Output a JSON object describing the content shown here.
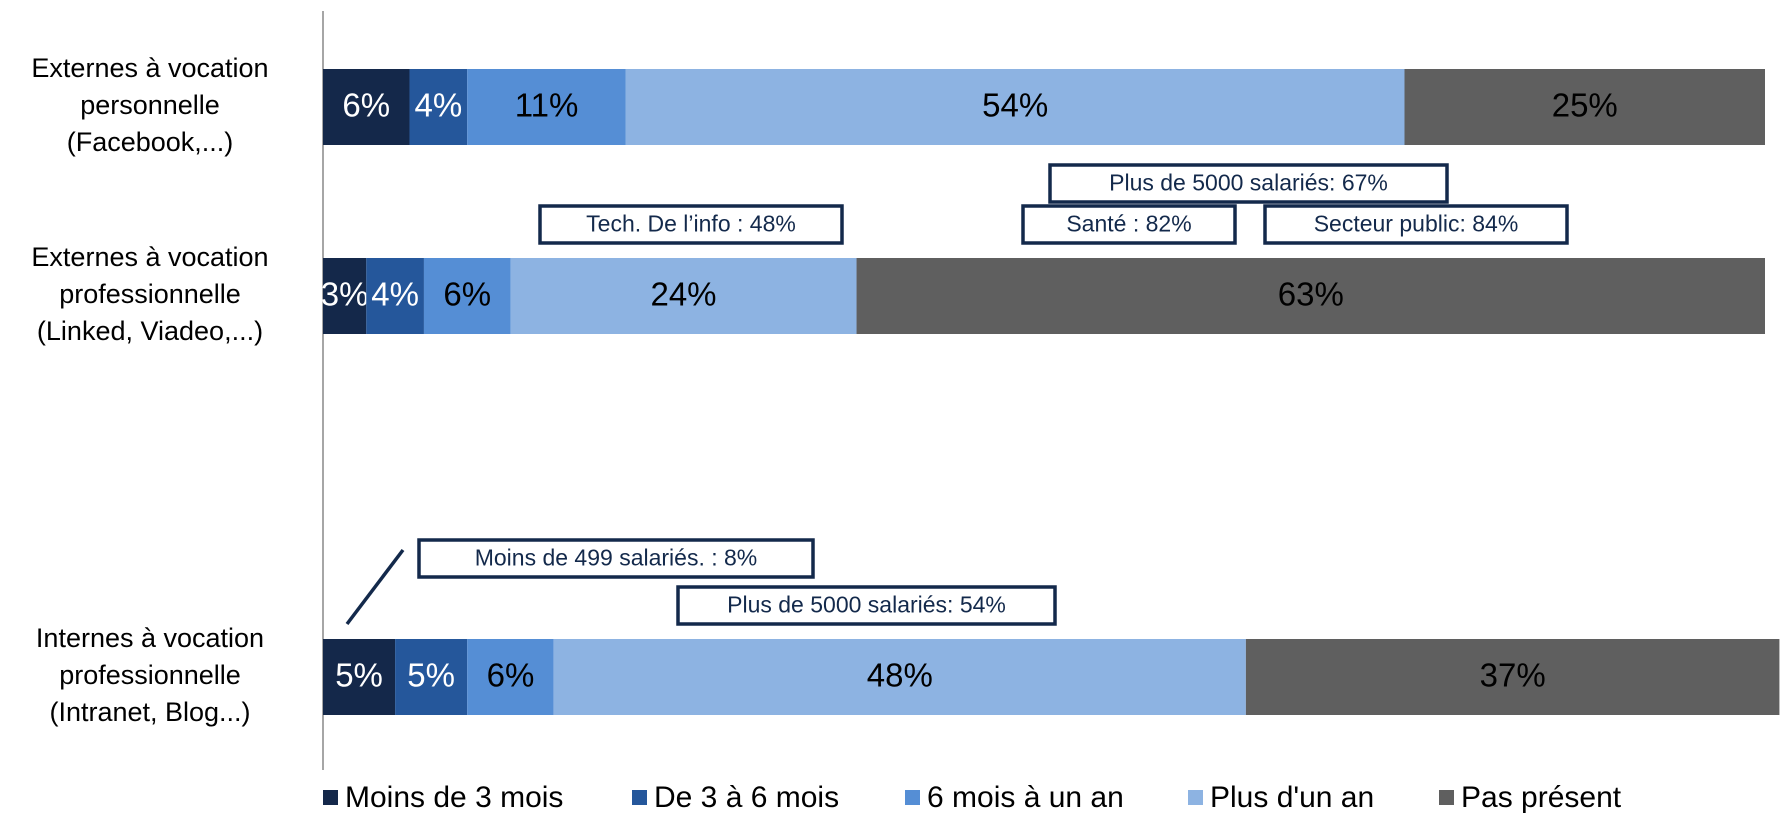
{
  "chart_data": {
    "type": "stacked_barh",
    "categories": [
      "Externes à vocation\npersonnelle\n(Facebook,...)",
      "Externes à vocation\nprofessionnelle\n(Linked, Viadeo,...)",
      "Internes à vocation\nprofessionnelle\n(Intranet, Blog...)"
    ],
    "series": [
      {
        "name": "Moins de 3 mois",
        "color": "#14284a",
        "values": [
          6,
          3,
          5
        ],
        "value_labels": [
          "6%",
          "3%",
          "5%"
        ]
      },
      {
        "name": "De 3 à 6 mois",
        "color": "#25579b",
        "values": [
          4,
          4,
          5
        ],
        "value_labels": [
          "4%",
          "4%",
          "5%"
        ]
      },
      {
        "name": "6 mois à un an",
        "color": "#558ed5",
        "values": [
          11,
          6,
          6
        ],
        "value_labels": [
          "11%",
          "6%",
          "6%"
        ]
      },
      {
        "name": "Plus d'un an",
        "color": "#8db3e2",
        "values": [
          54,
          24,
          48
        ],
        "value_labels": [
          "54%",
          "24%",
          "48%"
        ]
      },
      {
        "name": "Pas présent",
        "color": "#5f5f5f",
        "values": [
          25,
          63,
          37
        ],
        "value_labels": [
          "25%",
          "63%",
          "37%"
        ]
      }
    ],
    "xlim": [
      0,
      100
    ],
    "legend": "bottom",
    "annotations": [
      "Plus de 5000 salariés: 67%",
      "Tech. De l’info : 48%",
      "Santé : 82%",
      "Secteur public: 84%",
      "Moins de 499 salariés. : 8%",
      "Plus de 5000 salariés: 54%"
    ]
  }
}
